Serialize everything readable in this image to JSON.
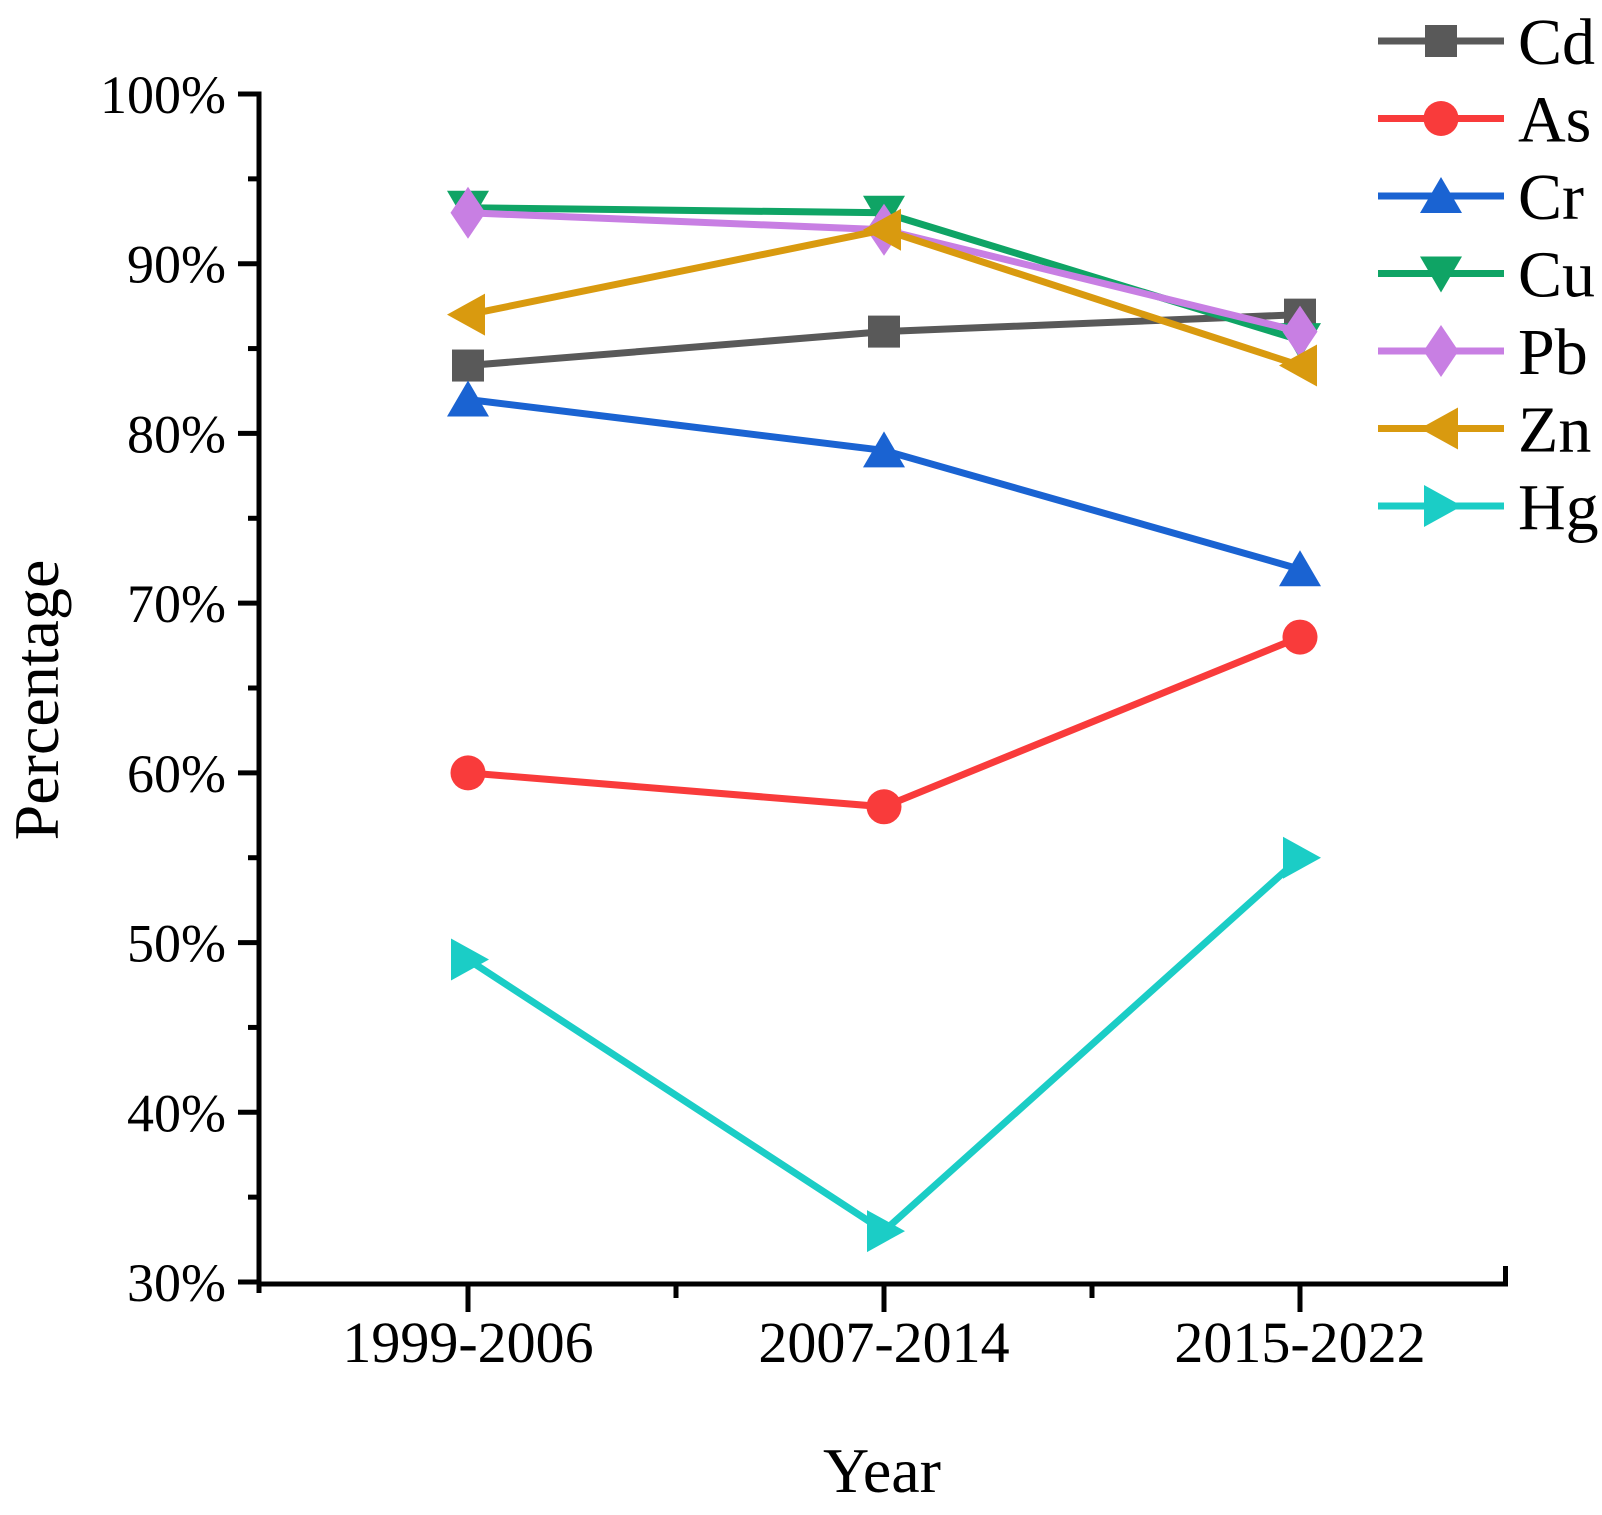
{
  "figure": {
    "background": "#ffffff",
    "axis_color": "#000000"
  },
  "chart_data": {
    "type": "line",
    "title": "",
    "xlabel": "Year",
    "ylabel": "Percentage",
    "categories": [
      "1999-2006",
      "2007-2014",
      "2015-2022"
    ],
    "y_axis": {
      "min": 30,
      "max": 100,
      "major_step": 10,
      "minor_step": 5,
      "tick_labels": [
        "30%",
        "40%",
        "50%",
        "60%",
        "70%",
        "80%",
        "90%",
        "100%"
      ]
    },
    "grid": "off",
    "legend_position": "top-right",
    "series": [
      {
        "name": "Cd",
        "color": "#595959",
        "marker": "square",
        "values": [
          84,
          86,
          87
        ]
      },
      {
        "name": "As",
        "color": "#F93B3B",
        "marker": "circle",
        "values": [
          60,
          58,
          68
        ]
      },
      {
        "name": "Cr",
        "color": "#1A63D2",
        "marker": "triangle-up",
        "values": [
          82,
          79,
          72
        ]
      },
      {
        "name": "Cu",
        "color": "#0FA465",
        "marker": "triangle-down",
        "values": [
          93.3,
          93,
          85.5
        ]
      },
      {
        "name": "Pb",
        "color": "#C87FE3",
        "marker": "diamond",
        "values": [
          93,
          92,
          86
        ]
      },
      {
        "name": "Zn",
        "color": "#D99A0F",
        "marker": "triangle-left",
        "values": [
          87,
          92,
          84
        ]
      },
      {
        "name": "Hg",
        "color": "#1BCDC6",
        "marker": "triangle-right",
        "values": [
          49,
          33,
          55
        ]
      }
    ]
  }
}
